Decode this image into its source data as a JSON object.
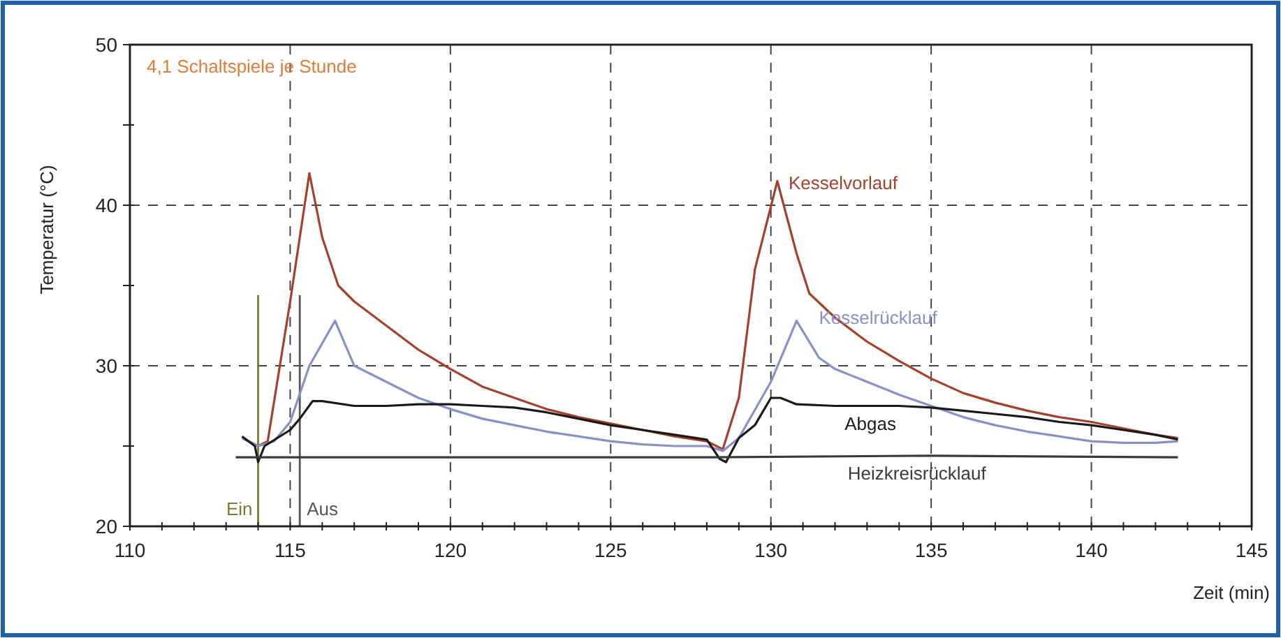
{
  "chart_data": {
    "type": "line",
    "xlabel": "Zeit (min)",
    "ylabel": "Temperatur (°C)",
    "annotations": [
      "4,1 Schaltspiele je Stunde"
    ],
    "xlim": [
      110,
      145
    ],
    "ylim": [
      20,
      50
    ],
    "xticks": [
      110,
      {
        "value": 111,
        "label": null
      },
      {
        "value": 112,
        "label": null
      },
      {
        "value": 113,
        "label": null
      },
      {
        "value": 114,
        "label": null
      },
      115,
      {
        "value": 116,
        "label": null
      },
      {
        "value": 117,
        "label": null
      },
      {
        "value": 118,
        "label": null
      },
      {
        "value": 119,
        "label": null
      },
      120,
      {
        "value": 121,
        "label": null
      },
      {
        "value": 122,
        "label": null
      },
      {
        "value": 123,
        "label": null
      },
      {
        "value": 124,
        "label": null
      },
      125,
      {
        "value": 126,
        "label": null
      },
      {
        "value": 127,
        "label": null
      },
      {
        "value": 128,
        "label": null
      },
      {
        "value": 129,
        "label": null
      },
      130,
      {
        "value": 131,
        "label": null
      },
      {
        "value": 132,
        "label": null
      },
      {
        "value": 133,
        "label": null
      },
      {
        "value": 134,
        "label": null
      },
      135,
      {
        "value": 136,
        "label": null
      },
      {
        "value": 137,
        "label": null
      },
      {
        "value": 138,
        "label": null
      },
      {
        "value": 139,
        "label": null
      },
      140,
      {
        "value": 141,
        "label": null
      },
      {
        "value": 142,
        "label": null
      },
      {
        "value": 143,
        "label": null
      },
      {
        "value": 144,
        "label": null
      },
      145
    ],
    "yticks": [
      20,
      {
        "value": 25,
        "label": null
      },
      30,
      {
        "value": 35,
        "label": null
      },
      40,
      {
        "value": 45,
        "label": null
      },
      50
    ],
    "grid": true,
    "marker": "none",
    "line_style": "solid",
    "ref_lines": [
      {
        "axis": "x",
        "value": 114,
        "label": "Ein",
        "color": "#7a7a30"
      },
      {
        "axis": "x",
        "value": 115.3,
        "label": "Aus",
        "color": "#555555"
      }
    ],
    "series": [
      {
        "name": "Kesselvorlauf",
        "color": "#a5402a",
        "x": [
          113.5,
          114,
          114.3,
          115,
          115.6,
          116,
          116.5,
          117,
          118,
          119,
          120,
          121,
          122,
          123,
          124,
          125,
          126,
          127,
          128,
          128.5,
          129,
          129.5,
          130.2,
          130.8,
          131.2,
          132,
          133,
          134,
          135,
          136,
          137,
          138,
          139,
          140,
          141,
          142,
          142.7
        ],
        "values": [
          25.5,
          25,
          25.3,
          34,
          42,
          38,
          35,
          34,
          32.5,
          31,
          29.8,
          28.7,
          28,
          27.3,
          26.8,
          26.4,
          26,
          25.6,
          25.3,
          24.8,
          28,
          36,
          41.5,
          37,
          34.5,
          33,
          31.5,
          30.3,
          29.2,
          28.3,
          27.7,
          27.2,
          26.8,
          26.5,
          26.1,
          25.7,
          25.5
        ]
      },
      {
        "name": "Kesselrücklauf",
        "color": "#8a8fc8",
        "x": [
          113.5,
          114,
          114.5,
          115,
          115.6,
          116.4,
          117,
          118,
          119,
          120,
          121,
          122,
          123,
          124,
          125,
          126,
          127,
          128,
          128.5,
          129,
          130,
          130.8,
          131.5,
          132,
          133,
          134,
          135,
          136,
          137,
          138,
          139,
          140,
          141,
          142,
          142.7
        ],
        "values": [
          25.5,
          25,
          25.3,
          26.5,
          30,
          32.8,
          30,
          29,
          28,
          27.3,
          26.7,
          26.3,
          25.9,
          25.6,
          25.3,
          25.1,
          25,
          25,
          24.7,
          25.5,
          29,
          32.8,
          30.5,
          29.8,
          29,
          28.2,
          27.5,
          26.8,
          26.3,
          25.9,
          25.6,
          25.3,
          25.2,
          25.2,
          25.3
        ]
      },
      {
        "name": "Abgas",
        "color": "#1a1a1a",
        "x": [
          113.5,
          113.9,
          114,
          114.2,
          115,
          115.3,
          115.7,
          116,
          117,
          118,
          119,
          120,
          121,
          122,
          123,
          124,
          125,
          126,
          127,
          128,
          128.4,
          128.6,
          129,
          129.5,
          130,
          130.3,
          130.8,
          132,
          134,
          135,
          136,
          137,
          138,
          139,
          140,
          141,
          142,
          142.7
        ],
        "values": [
          25.6,
          25,
          24,
          25,
          26,
          26.7,
          27.8,
          27.8,
          27.5,
          27.5,
          27.6,
          27.6,
          27.5,
          27.4,
          27.1,
          26.7,
          26.3,
          26,
          25.7,
          25.4,
          24.2,
          24,
          25.5,
          26.3,
          28,
          28,
          27.6,
          27.5,
          27.5,
          27.4,
          27.2,
          27,
          26.8,
          26.5,
          26.3,
          26,
          25.7,
          25.4
        ]
      },
      {
        "name": "Heizkreisrücklauf",
        "color": "#3a3a3a",
        "x": [
          113.3,
          120,
          128,
          135,
          142.7
        ],
        "values": [
          24.3,
          24.3,
          24.3,
          24.4,
          24.3
        ]
      }
    ]
  }
}
